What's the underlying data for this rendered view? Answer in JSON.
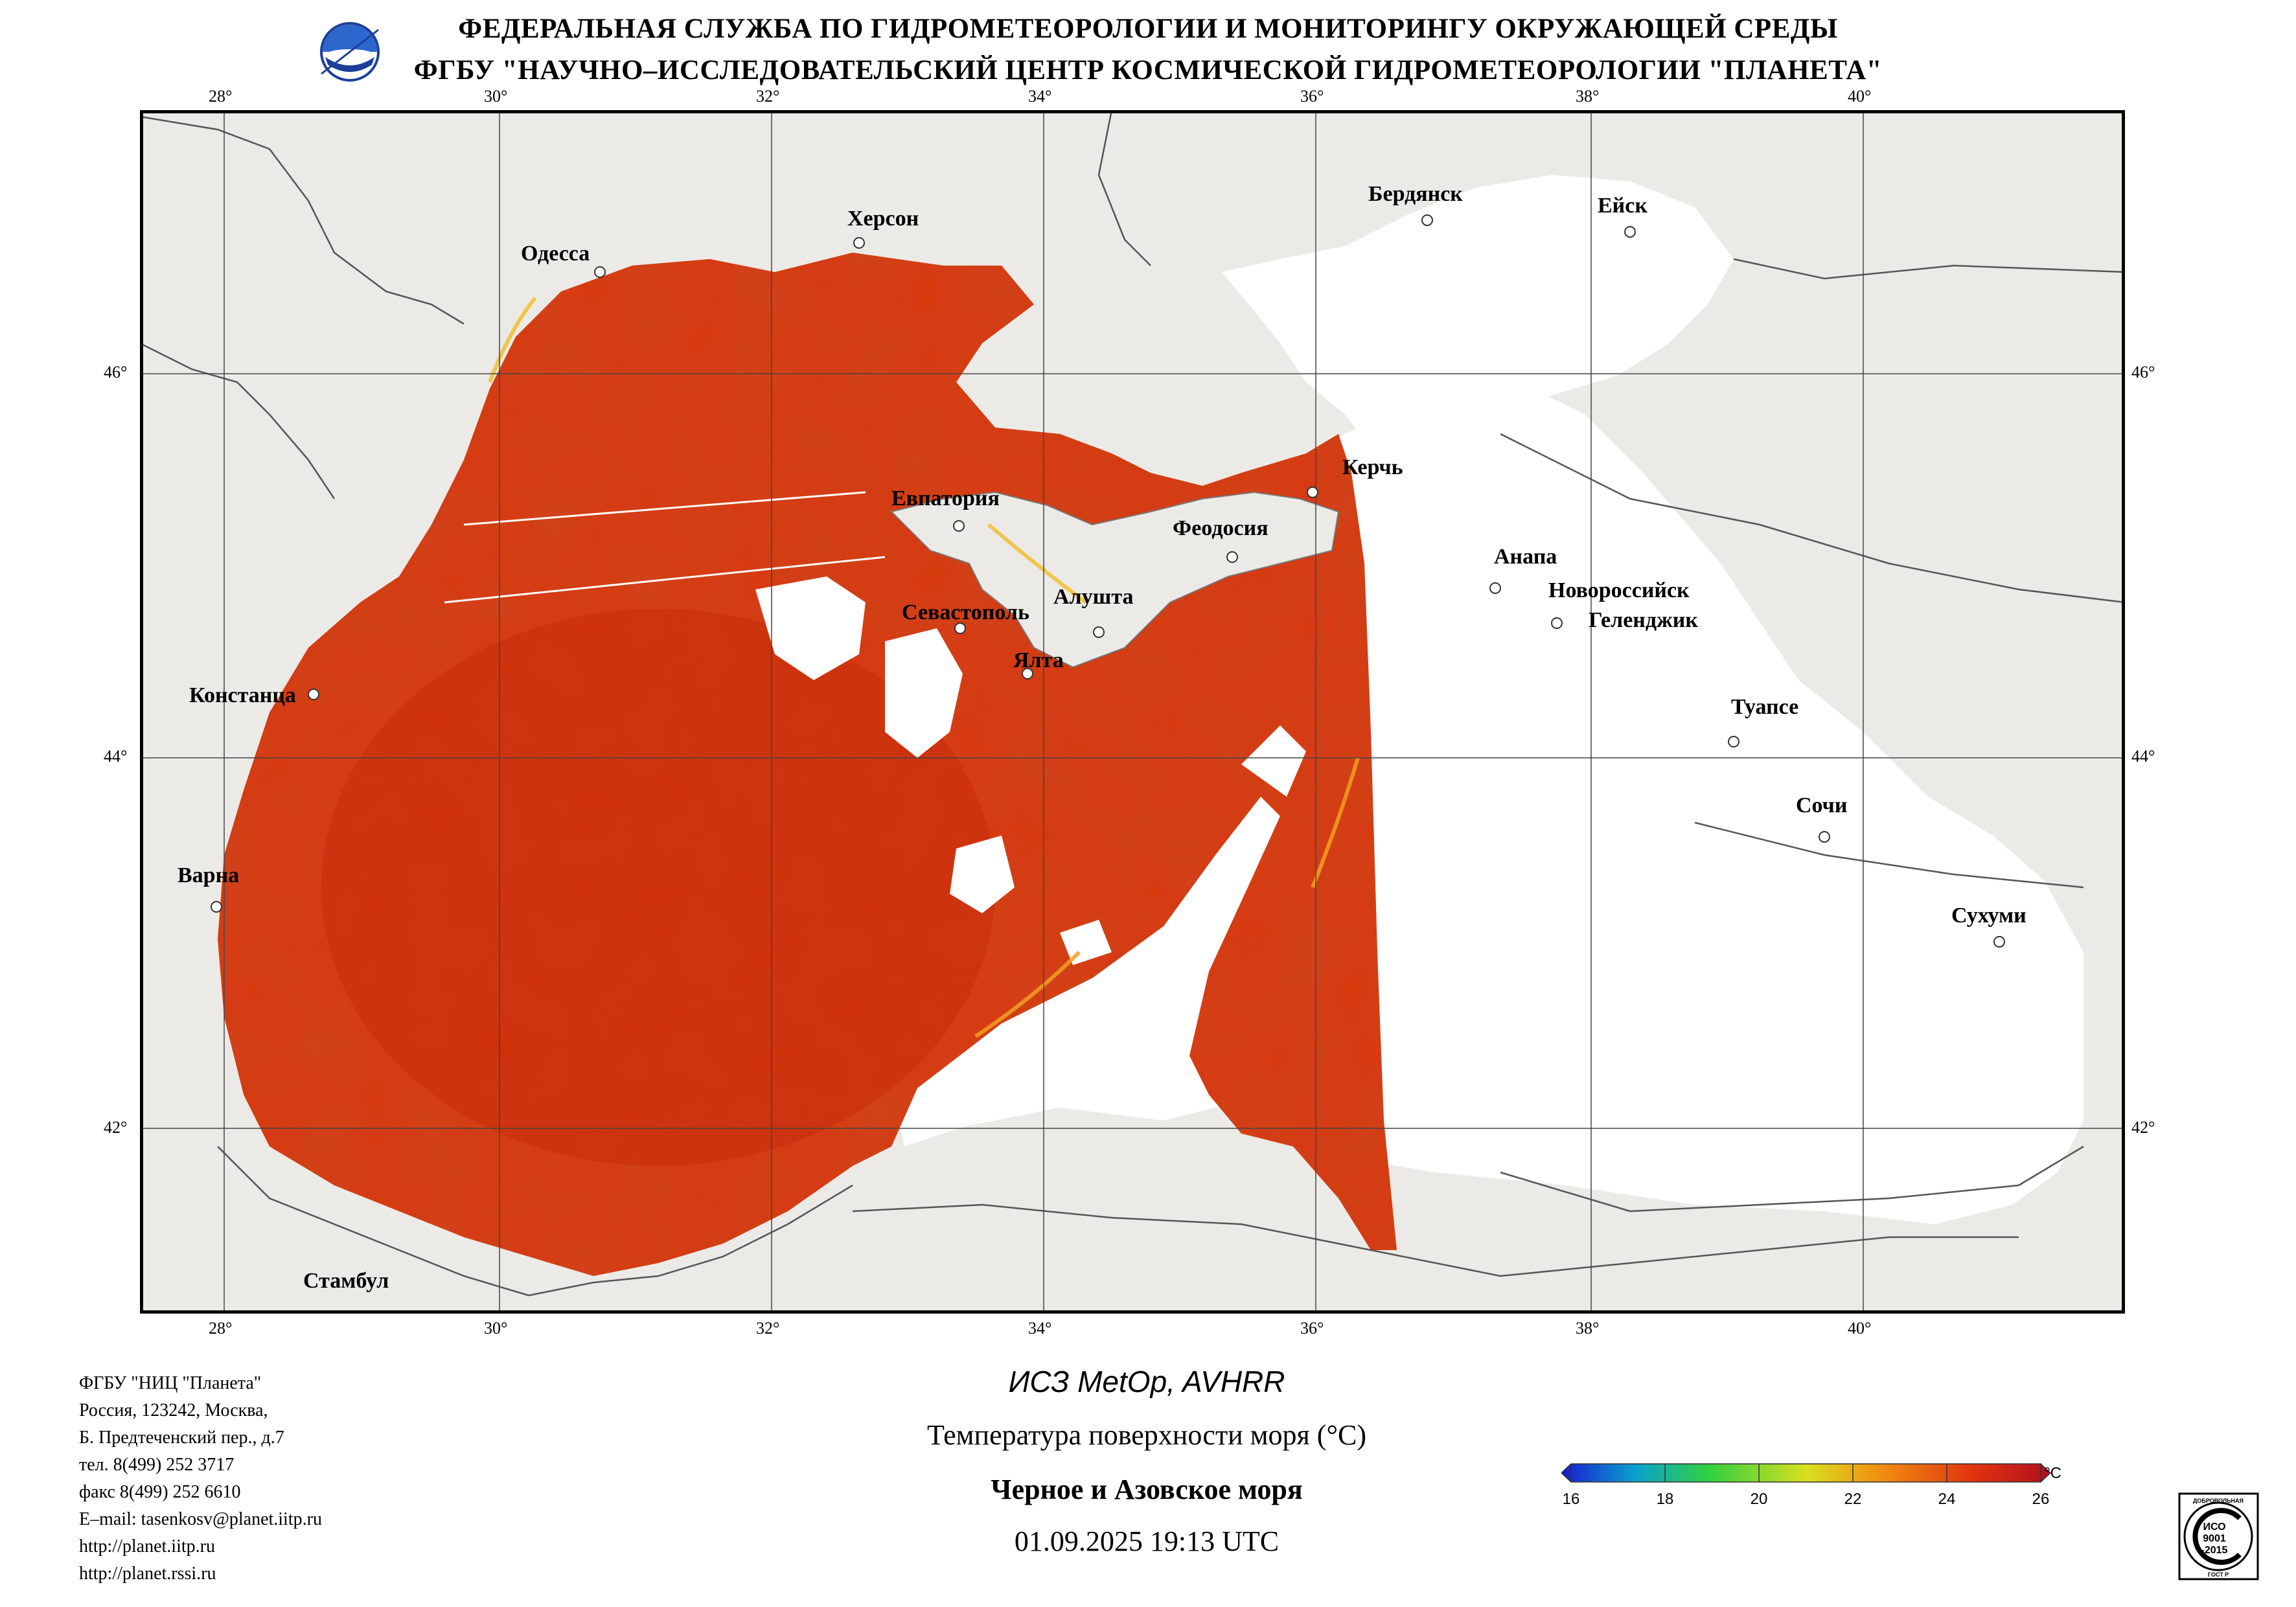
{
  "header": {
    "line1": "ФЕДЕРАЛЬНАЯ СЛУЖБА ПО ГИДРОМЕТЕОРОЛОГИИ И МОНИТОРИНГУ ОКРУЖАЮЩЕЙ СРЕДЫ",
    "line2": "ФГБУ \"НАУЧНО–ИССЛЕДОВАТЕЛЬСКИЙ ЦЕНТР КОСМИЧЕСКОЙ ГИДРОМЕТЕОРОЛОГИИ \"ПЛАНЕТА\""
  },
  "map": {
    "lon_labels": [
      "28°",
      "30°",
      "32°",
      "34°",
      "36°",
      "38°",
      "40°"
    ],
    "lat_labels": [
      "46°",
      "44°",
      "42°"
    ],
    "cities": [
      {
        "key": "odessa",
        "name": "Одесса"
      },
      {
        "key": "kherson",
        "name": "Херсон"
      },
      {
        "key": "berdyansk",
        "name": "Бердянск"
      },
      {
        "key": "yeysk",
        "name": "Ейск"
      },
      {
        "key": "kerch",
        "name": "Керчь"
      },
      {
        "key": "evpatoria",
        "name": "Евпатория"
      },
      {
        "key": "feodosia",
        "name": "Феодосия"
      },
      {
        "key": "anapa",
        "name": "Анапа"
      },
      {
        "key": "novorossiysk",
        "name": "Новороссийск"
      },
      {
        "key": "gelendzhik",
        "name": "Геленджик"
      },
      {
        "key": "sevastopol",
        "name": "Севастополь"
      },
      {
        "key": "alushta",
        "name": "Алушта"
      },
      {
        "key": "yalta",
        "name": "Ялта"
      },
      {
        "key": "constanta",
        "name": "Констанца"
      },
      {
        "key": "tuapse",
        "name": "Туапсе"
      },
      {
        "key": "sochi",
        "name": "Сочи"
      },
      {
        "key": "varna",
        "name": "Варна"
      },
      {
        "key": "sukhumi",
        "name": "Сухуми"
      },
      {
        "key": "istanbul",
        "name": "Стамбул"
      }
    ],
    "colors": {
      "land": "#eceae6",
      "sea_warm": "#d93a10",
      "cloud": "#ffffff",
      "border": "#555555"
    }
  },
  "info": {
    "lines": [
      "ФГБУ \"НИЦ \"Планета\"",
      "Россия, 123242, Москва,",
      "Б. Предтеченский пер., д.7",
      "тел. 8(499) 252 3717",
      "факс 8(499) 252 6610",
      "E–mail: tasenkosv@planet.iitp.ru",
      "http://planet.iitp.ru",
      "http://planet.rssi.ru"
    ]
  },
  "caption": {
    "satellite": "ИСЗ MetOp, AVHRR",
    "parameter": "Температура поверхности моря (°C)",
    "region": "Черное и Азовское моря",
    "datetime": "01.09.2025 19:13 UTC"
  },
  "legend": {
    "unit": "°C",
    "ticks": [
      "16",
      "18",
      "20",
      "22",
      "24",
      "26"
    ],
    "range": [
      16,
      26
    ],
    "colors": [
      "#1a1ad0",
      "#0aa0d0",
      "#30d040",
      "#d8e020",
      "#f09010",
      "#e03010",
      "#b01020"
    ]
  },
  "iso_badge": {
    "top_text": "ДОБРОВОЛЬНАЯ",
    "line1": "ИСО",
    "line2": "9001",
    "line3": "-2015",
    "bottom_text": "ГОСТ Р"
  }
}
